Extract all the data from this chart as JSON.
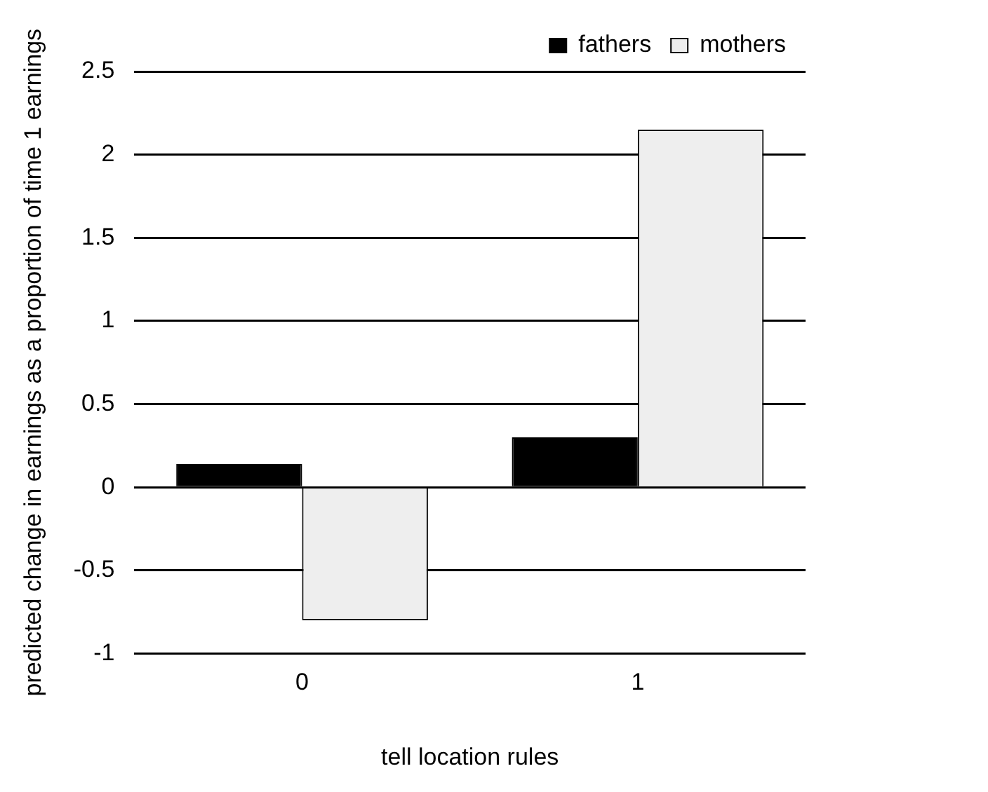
{
  "chart_data": {
    "type": "bar",
    "xlabel": "tell location rules",
    "ylabel": "predicted change in earnings as a proportion of time 1 earnings",
    "categories": [
      "0",
      "1"
    ],
    "series": [
      {
        "name": "fathers",
        "color": "#000000",
        "values": [
          0.14,
          0.3
        ]
      },
      {
        "name": "mothers",
        "color": "#eeeeee",
        "values": [
          -0.8,
          2.15
        ]
      }
    ],
    "ylim": [
      -1,
      2.5
    ],
    "yticks": [
      -1,
      -0.5,
      0,
      0.5,
      1,
      1.5,
      2,
      2.5
    ],
    "grid": "y",
    "legend": "top right"
  }
}
